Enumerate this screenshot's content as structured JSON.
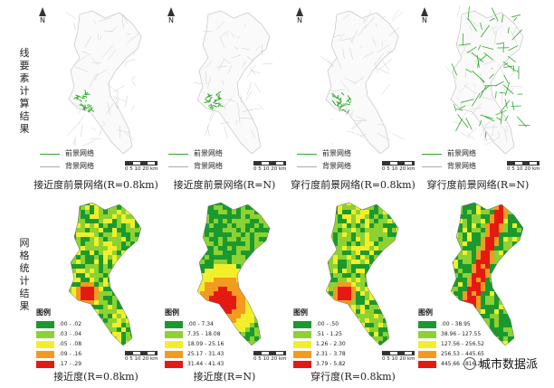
{
  "rows": [
    {
      "label": "线要素计算结果"
    },
    {
      "label": "网格统计结果"
    }
  ],
  "north": "N",
  "line_panels": [
    {
      "caption": "接近度前景网络(R=0.8km)",
      "density": "low"
    },
    {
      "caption": "接近度前景网络(R=N)",
      "density": "low"
    },
    {
      "caption": "穿行度前景网络(R=0.8km)",
      "density": "low"
    },
    {
      "caption": "穿行度前景网络(R=N)",
      "density": "high"
    }
  ],
  "line_legend": {
    "foreground": "前景网络",
    "background": "背景网络"
  },
  "scale_text": "0 5 10    20 km",
  "grid_panels": [
    {
      "caption": "接近度(R=0.8km)",
      "legend_title": "图例",
      "classes": [
        ".00 - .02",
        ".03 - .04",
        ".05 - .08",
        ".09 - .16",
        ".17 - .29"
      ],
      "mode": "local"
    },
    {
      "caption": "接近度(R=N)",
      "legend_title": "图例",
      "classes": [
        ".00 - 7.34",
        "7.35 - 18.08",
        "18.09 - 25.16",
        "25.17 - 31.43",
        "31.44 - 41.43"
      ],
      "mode": "global"
    },
    {
      "caption": "穿行度(R=0.8km)",
      "legend_title": "图例",
      "classes": [
        ".00 - .50",
        ".51 - 1.25",
        "1.26 - 2.30",
        "2.31 - 3.78",
        "3.79 - 5.82"
      ],
      "mode": "local"
    },
    {
      "caption": "穿行度(R=N)",
      "legend_title": "图例",
      "classes": [
        ".00 - 38.95",
        "38.96 - 127.55",
        "127.56 - 256.52",
        "256.53 - 445.65",
        "445.66 - 816.26"
      ],
      "mode": "corridor"
    }
  ],
  "class_colors": [
    "#1a9a2e",
    "#8ed132",
    "#f2ef2a",
    "#f39a20",
    "#e41a12"
  ],
  "watermark": "城市数据派"
}
